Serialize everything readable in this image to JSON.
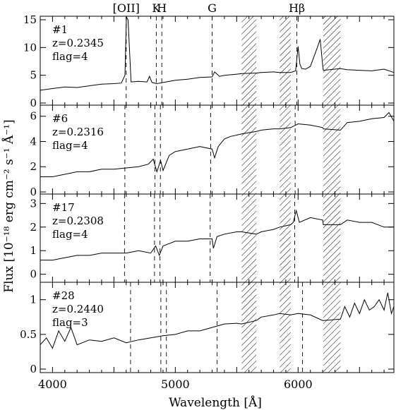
{
  "chart_data": {
    "type": "line",
    "xlabel": "Wavelength [Å]",
    "ylabel": "Flux [10⁻¹⁸ erg cm⁻² s⁻¹ Å⁻¹]",
    "xlim": [
      3900,
      6780
    ],
    "x_ticks": [
      4000,
      5000,
      6000
    ],
    "x_ticks_labels": [
      "4000",
      "5000",
      "6000"
    ],
    "line_labels": [
      {
        "text": "[OII]",
        "x": 4600
      },
      {
        "text": "K",
        "x": 4845
      },
      {
        "text": "H",
        "x": 4890
      },
      {
        "text": "G",
        "x": 5300
      },
      {
        "text": "Hβ",
        "x": 5990
      }
    ],
    "telluric_bands": [
      [
        5540,
        5660
      ],
      [
        5850,
        5940
      ],
      [
        6205,
        6345
      ]
    ],
    "panels": [
      {
        "id": "#1",
        "z": "z=0.2345",
        "flag": "flag=4",
        "redshift": 0.2345,
        "ylim": [
          0,
          15
        ],
        "yticks": [
          0,
          5,
          10,
          15
        ],
        "ytick_labels": [
          "0",
          "5",
          "10",
          "15"
        ],
        "spectrum": {
          "x": [
            3900,
            4000,
            4100,
            4200,
            4300,
            4400,
            4500,
            4560,
            4590,
            4602,
            4615,
            4640,
            4700,
            4770,
            4790,
            4810,
            4850,
            4900,
            5000,
            5100,
            5200,
            5300,
            5320,
            5360,
            5400,
            5500,
            5540,
            5660,
            5700,
            5800,
            5850,
            5940,
            5980,
            6000,
            6015,
            6030,
            6060,
            6100,
            6160,
            6180,
            6200,
            6205,
            6345,
            6400,
            6500,
            6600,
            6700,
            6780
          ],
          "y": [
            2.3,
            2.6,
            2.9,
            2.8,
            3.1,
            3.4,
            3.5,
            3.6,
            5.0,
            16.0,
            15.0,
            3.8,
            3.9,
            3.8,
            4.8,
            3.7,
            3.5,
            3.7,
            4.1,
            4.3,
            4.6,
            4.7,
            5.6,
            4.8,
            5.0,
            5.2,
            5.3,
            5.4,
            5.5,
            5.6,
            5.5,
            5.5,
            5.8,
            10.2,
            7.0,
            6.2,
            6.1,
            6.6,
            10.2,
            11.5,
            6.8,
            5.9,
            6.2,
            6.0,
            5.9,
            5.8,
            6.1,
            5.5
          ]
        }
      },
      {
        "id": "#6",
        "z": "z=0.2316",
        "flag": "flag=4",
        "redshift": 0.2316,
        "ylim": [
          0,
          6.6
        ],
        "yticks": [
          0,
          2,
          4,
          6
        ],
        "ytick_labels": [
          "0",
          "2",
          "4",
          "6"
        ],
        "spectrum": {
          "x": [
            3900,
            4000,
            4100,
            4200,
            4300,
            4400,
            4500,
            4600,
            4700,
            4780,
            4820,
            4850,
            4880,
            4900,
            4950,
            5000,
            5100,
            5200,
            5300,
            5320,
            5350,
            5400,
            5450,
            5500,
            5540,
            5660,
            5700,
            5800,
            5850,
            5940,
            6000,
            6100,
            6200,
            6205,
            6345,
            6400,
            6500,
            6600,
            6700,
            6740,
            6780
          ],
          "y": [
            1.2,
            1.2,
            1.4,
            1.6,
            1.6,
            1.8,
            1.8,
            1.9,
            2.0,
            2.2,
            2.6,
            1.6,
            2.5,
            1.7,
            2.9,
            3.2,
            3.4,
            3.6,
            3.4,
            2.7,
            3.6,
            4.2,
            4.4,
            4.5,
            4.6,
            4.8,
            4.9,
            5.0,
            5.0,
            5.1,
            5.4,
            5.3,
            5.1,
            5.0,
            4.9,
            5.5,
            5.6,
            5.8,
            5.9,
            6.3,
            5.6
          ]
        }
      },
      {
        "id": "#17",
        "z": "z=0.2308",
        "flag": "flag=4",
        "redshift": 0.2308,
        "ylim": [
          -0.25,
          3.25
        ],
        "yticks": [
          0,
          1,
          2,
          3
        ],
        "ytick_labels": [
          "0",
          "1",
          "2",
          "3"
        ],
        "spectrum": {
          "x": [
            3900,
            4000,
            4100,
            4200,
            4300,
            4400,
            4500,
            4600,
            4700,
            4800,
            4840,
            4870,
            4900,
            4950,
            5000,
            5100,
            5200,
            5300,
            5310,
            5340,
            5400,
            5500,
            5540,
            5660,
            5700,
            5800,
            5850,
            5940,
            5960,
            5985,
            6010,
            6100,
            6200,
            6205,
            6345,
            6400,
            6500,
            6600,
            6700,
            6780
          ],
          "y": [
            0.6,
            0.6,
            0.7,
            0.8,
            0.8,
            0.9,
            0.9,
            0.9,
            1.0,
            0.9,
            1.2,
            0.8,
            1.2,
            1.3,
            1.4,
            1.4,
            1.5,
            1.5,
            1.1,
            1.6,
            1.7,
            1.8,
            1.8,
            1.7,
            1.8,
            1.9,
            2.0,
            2.1,
            2.2,
            2.7,
            2.2,
            2.4,
            2.3,
            2.1,
            2.1,
            2.3,
            2.2,
            2.2,
            2.0,
            2.0
          ]
        }
      },
      {
        "id": "#28",
        "z": "z=0.2440",
        "flag": "flag=3",
        "redshift": 0.244,
        "ylim": [
          -0.02,
          1.2
        ],
        "yticks": [
          0,
          0.5,
          1
        ],
        "ytick_labels": [
          "0",
          "0.5",
          "1"
        ],
        "spectrum": {
          "x": [
            3900,
            3950,
            4000,
            4050,
            4100,
            4150,
            4200,
            4300,
            4400,
            4500,
            4600,
            4700,
            4800,
            4900,
            5000,
            5100,
            5200,
            5300,
            5400,
            5500,
            5540,
            5660,
            5700,
            5800,
            5850,
            5940,
            6000,
            6100,
            6200,
            6205,
            6345,
            6380,
            6420,
            6460,
            6500,
            6540,
            6580,
            6620,
            6660,
            6700,
            6730,
            6760,
            6780
          ],
          "y": [
            0.35,
            0.45,
            0.3,
            0.55,
            0.4,
            0.6,
            0.35,
            0.42,
            0.4,
            0.45,
            0.38,
            0.42,
            0.45,
            0.48,
            0.5,
            0.55,
            0.55,
            0.6,
            0.65,
            0.66,
            0.65,
            0.7,
            0.75,
            0.78,
            0.8,
            0.78,
            0.8,
            0.78,
            0.7,
            0.7,
            0.72,
            0.9,
            0.75,
            0.95,
            0.8,
            1.0,
            0.85,
            0.9,
            1.0,
            0.85,
            1.1,
            0.8,
            0.9
          ]
        }
      }
    ]
  }
}
